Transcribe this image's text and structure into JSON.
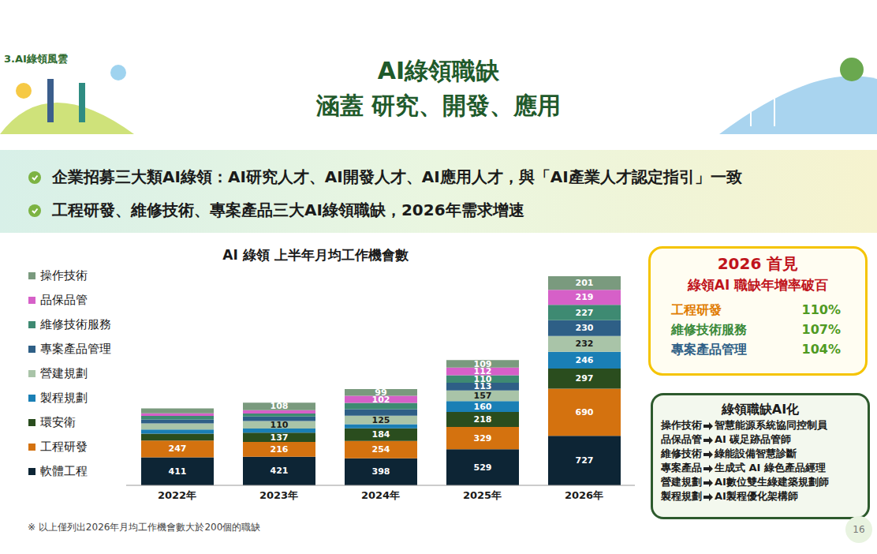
{
  "tag": "3.AI綠領風雲",
  "title": [
    "AI綠領職缺",
    "涵蓋 研究、開發、應用"
  ],
  "bullets": [
    "企業招募三大類AI綠領：AI研究人才、AI開發人才、AI應用人才，與「AI產業人才認定指引」一致",
    "工程研發、維修技術、專案產品三大AI綠領職缺，2026年需求增速"
  ],
  "chart_data": {
    "type": "bar",
    "stacked": true,
    "title": "AI 綠領 上半年月均工作機會數",
    "categories": [
      "2022年",
      "2023年",
      "2024年",
      "2025年",
      "2026年"
    ],
    "ylim": [
      0,
      3300
    ],
    "tick_labels": "x",
    "legend": "left",
    "series": [
      {
        "name": "軟體工程",
        "color": "#0d2535",
        "values": [
          411,
          421,
          398,
          529,
          727
        ],
        "value_labels": [
          "411",
          "421",
          "398",
          "529",
          "727"
        ]
      },
      {
        "name": "工程研發",
        "color": "#d4720f",
        "values": [
          247,
          216,
          254,
          329,
          690
        ],
        "value_labels": [
          "247",
          "216",
          "254",
          "329",
          "690"
        ]
      },
      {
        "name": "環安衛",
        "color": "#2a4d1e",
        "values": [
          100,
          137,
          184,
          218,
          297
        ],
        "value_labels": [
          null,
          "137",
          "184",
          "218",
          "297"
        ]
      },
      {
        "name": "製程規劃",
        "color": "#1a7fb5",
        "values": [
          60,
          60,
          60,
          160,
          246
        ],
        "value_labels": [
          null,
          null,
          null,
          "160",
          "246"
        ]
      },
      {
        "name": "營建規劃",
        "color": "#a9c4a8",
        "values": [
          90,
          110,
          125,
          157,
          232
        ],
        "value_labels": [
          null,
          "110",
          "125",
          "157",
          "232"
        ]
      },
      {
        "name": "專案產品管理",
        "color": "#2e5f86",
        "values": [
          60,
          65,
          95,
          113,
          230
        ],
        "value_labels": [
          null,
          null,
          null,
          "113",
          "230"
        ]
      },
      {
        "name": "維修技術服務",
        "color": "#3e8a72",
        "values": [
          50,
          45,
          95,
          110,
          227
        ],
        "value_labels": [
          null,
          null,
          null,
          "110",
          "227"
        ]
      },
      {
        "name": "品保品管",
        "color": "#d660c8",
        "values": [
          40,
          50,
          102,
          112,
          219
        ],
        "value_labels": [
          null,
          null,
          "102",
          "112",
          "219"
        ]
      },
      {
        "name": "操作技術",
        "color": "#7a9a7e",
        "values": [
          70,
          108,
          99,
          109,
          201
        ],
        "value_labels": [
          null,
          "108",
          "99",
          "109",
          "201"
        ]
      }
    ]
  },
  "highlight": {
    "title": "2026 首見",
    "subtitle": "綠領AI 職缺年增率破百",
    "rows": [
      {
        "name": "工程研發",
        "color": "#e07b00",
        "value": "110%"
      },
      {
        "name": "維修技術服務",
        "color": "#3a8a3a",
        "value": "107%"
      },
      {
        "name": "專案產品管理",
        "color": "#2e5f86",
        "value": "104%"
      }
    ]
  },
  "ai_box": {
    "title": "綠領職缺AI化",
    "rows": [
      [
        "操作技術",
        "智慧能源系統協同控制員"
      ],
      [
        "品保品管",
        "AI 碳足跡品管師"
      ],
      [
        "維修技術",
        "綠能設備智慧診斷"
      ],
      [
        "專案產品",
        "生成式 AI 綠色產品經理"
      ],
      [
        "營建規劃",
        "AI數位雙生綠建築規劃師"
      ],
      [
        "製程規劃",
        "AI製程優化架構師"
      ]
    ]
  },
  "footnote": "※ 以上僅列出2026年月均工作機會數大於200個的職缺",
  "page": 16
}
